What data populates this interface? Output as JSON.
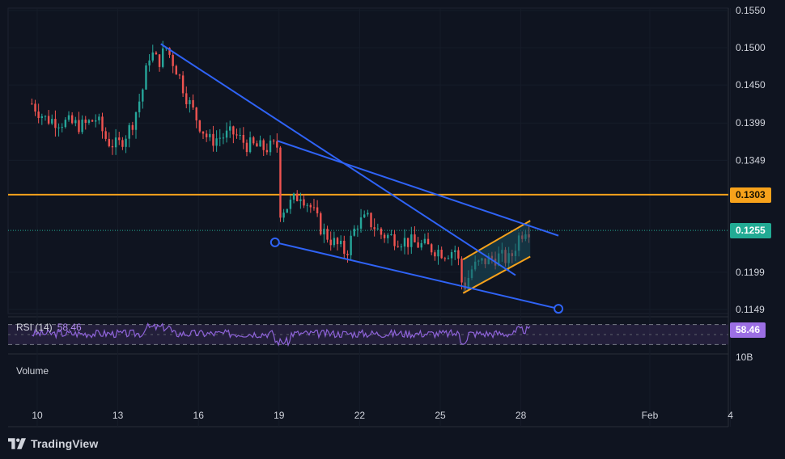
{
  "brand": {
    "name": "TradingView",
    "logo_icon": "tradingview-logo-icon"
  },
  "colors": {
    "background": "#0f1420",
    "candle_up": "#26a69a",
    "candle_down": "#ef5350",
    "trendline": "#2f63f6",
    "channel": "#f7a21b",
    "horizontal_line": "#f7a21b",
    "rsi_line": "#8e63d9",
    "rsi_band": "#4a3470",
    "current_price_tag": "#22ab94",
    "horizontal_tag": "#f7a21b",
    "rsi_tag": "#9c6fe4",
    "channel_fill": "#1c4f5e"
  },
  "chart_data": {
    "type": "candlestick",
    "x_ticks": [
      "10",
      "13",
      "16",
      "19",
      "22",
      "25",
      "28",
      "Feb",
      "4"
    ],
    "y_ticks": [
      "0.1550",
      "0.1500",
      "0.1450",
      "0.1399",
      "0.1349",
      "0.1199",
      "0.1149"
    ],
    "ylim": [
      0.1148,
      0.1555
    ],
    "current_price": "0.1255",
    "horizontal_level": "0.1303",
    "series_close_path": [
      [
        9.8,
        0.1425
      ],
      [
        10.3,
        0.1405
      ],
      [
        11.0,
        0.14
      ],
      [
        11.7,
        0.1395
      ],
      [
        12.2,
        0.1405
      ],
      [
        12.6,
        0.1375
      ],
      [
        13.0,
        0.1368
      ],
      [
        13.5,
        0.1395
      ],
      [
        13.9,
        0.144
      ],
      [
        14.2,
        0.1495
      ],
      [
        14.5,
        0.148
      ],
      [
        14.8,
        0.15
      ],
      [
        15.2,
        0.147
      ],
      [
        15.6,
        0.143
      ],
      [
        16.0,
        0.14
      ],
      [
        16.4,
        0.1375
      ],
      [
        16.8,
        0.138
      ],
      [
        17.3,
        0.1385
      ],
      [
        17.8,
        0.137
      ],
      [
        18.4,
        0.1365
      ],
      [
        18.95,
        0.1368
      ],
      [
        19.0,
        0.128
      ],
      [
        19.4,
        0.129
      ],
      [
        19.8,
        0.1305
      ],
      [
        20.2,
        0.1285
      ],
      [
        20.6,
        0.1255
      ],
      [
        21.0,
        0.124
      ],
      [
        21.5,
        0.1225
      ],
      [
        21.9,
        0.1265
      ],
      [
        22.3,
        0.127
      ],
      [
        22.8,
        0.125
      ],
      [
        23.3,
        0.1245
      ],
      [
        23.8,
        0.124
      ],
      [
        24.3,
        0.1235
      ],
      [
        24.8,
        0.123
      ],
      [
        25.2,
        0.1225
      ],
      [
        25.6,
        0.123
      ],
      [
        25.85,
        0.1175
      ],
      [
        26.2,
        0.1205
      ],
      [
        26.7,
        0.1215
      ],
      [
        27.2,
        0.122
      ],
      [
        27.6,
        0.1215
      ],
      [
        27.9,
        0.1245
      ],
      [
        28.2,
        0.126
      ],
      [
        28.35,
        0.1255
      ]
    ],
    "drawings": [
      {
        "kind": "trendline",
        "from": [
          14.6,
          0.1505
        ],
        "to": [
          27.8,
          0.1195
        ]
      },
      {
        "kind": "trendline",
        "from": [
          18.95,
          0.1375
        ],
        "to": [
          29.4,
          0.1248
        ]
      },
      {
        "kind": "trendline",
        "from": [
          18.85,
          0.1239
        ],
        "to": [
          29.4,
          0.115
        ]
      },
      {
        "kind": "channel",
        "upper": [
          [
            25.85,
            0.1216
          ],
          [
            28.35,
            0.1268
          ]
        ],
        "lower": [
          [
            25.85,
            0.1171
          ],
          [
            28.35,
            0.122
          ]
        ]
      }
    ],
    "rsi": {
      "label": "RSI (14)",
      "value": "58.46",
      "band_upper": 70,
      "band_lower": 30
    },
    "volume": {
      "label": "Volume",
      "axis_label": "10B"
    }
  }
}
